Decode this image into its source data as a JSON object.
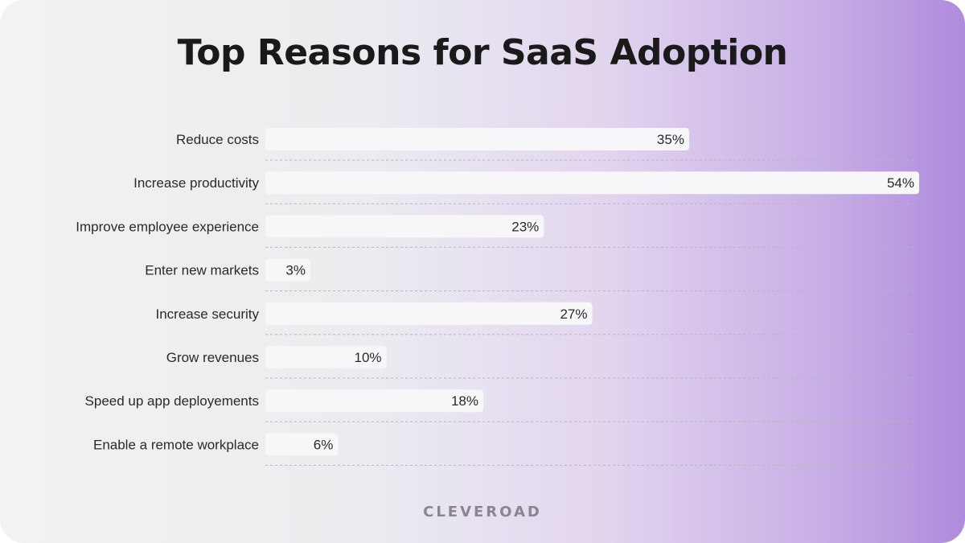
{
  "chart_data": {
    "type": "bar",
    "orientation": "horizontal",
    "title": "Top Reasons for SaaS Adoption",
    "categories": [
      "Reduce costs",
      "Increase productivity",
      "Improve employee experience",
      "Enter new markets",
      "Increase security",
      "Grow revenues",
      "Speed up app deployements",
      "Enable a remote workplace"
    ],
    "values": [
      35,
      54,
      23,
      3,
      27,
      10,
      18,
      6
    ],
    "value_labels": [
      "35%",
      "54%",
      "23%",
      "3%",
      "27%",
      "10%",
      "18%",
      "6%"
    ],
    "xlim": [
      0,
      54
    ],
    "grid": false,
    "legend": "none"
  },
  "brand": {
    "logo_text": "CLEVEROAD"
  },
  "colors": {
    "bar_fill": "#f7f6f9",
    "label_text": "#2a2a2a",
    "value_text": "#2a2a2a",
    "separator": "#b9b3c2",
    "title": "#1a1a1a"
  }
}
